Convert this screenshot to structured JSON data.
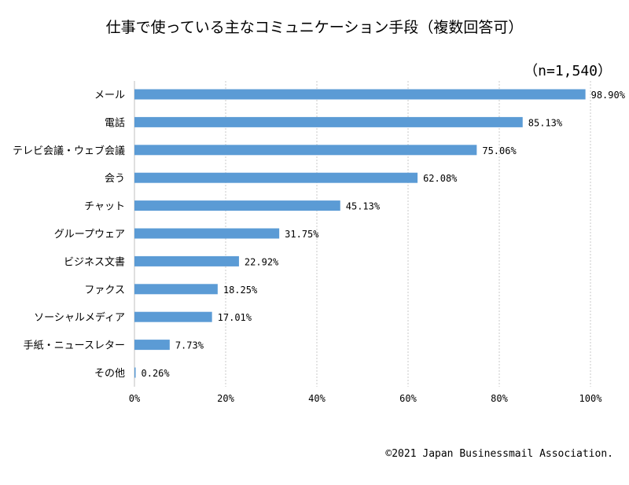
{
  "chart_data": {
    "type": "bar",
    "orientation": "horizontal",
    "title": "仕事で使っている主なコミュニケーション手段（複数回答可）",
    "sample_size": "（n=1,540）",
    "categories": [
      "メール",
      "電話",
      "テレビ会議・ウェブ会議",
      "会う",
      "チャット",
      "グループウェア",
      "ビジネス文書",
      "ファクス",
      "ソーシャルメディア",
      "手紙・ニュースレター",
      "その他"
    ],
    "values": [
      98.9,
      85.13,
      75.06,
      62.08,
      45.13,
      31.75,
      22.92,
      18.25,
      17.01,
      7.73,
      0.26
    ],
    "value_labels": [
      "98.90%",
      "85.13%",
      "75.06%",
      "62.08%",
      "45.13%",
      "31.75%",
      "22.92%",
      "18.25%",
      "17.01%",
      "7.73%",
      "0.26%"
    ],
    "xlim": [
      0,
      100
    ],
    "x_ticks": [
      0,
      20,
      40,
      60,
      80,
      100
    ],
    "x_tick_labels": [
      "0%",
      "20%",
      "40%",
      "60%",
      "80%",
      "100%"
    ],
    "grid": "vertical dotted",
    "bar_color": "#5b9bd5",
    "xlabel": "",
    "ylabel": ""
  },
  "footer": {
    "copyright": "©2021 Japan Businessmail Association."
  }
}
